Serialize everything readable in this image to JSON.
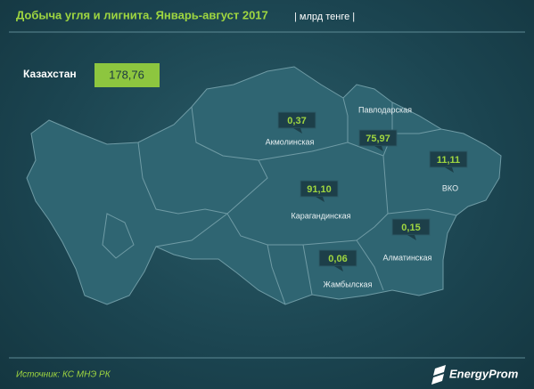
{
  "header": {
    "title": "Добыча угля и лигнита. Январь-август 2017",
    "unit": "| млрд тенге |"
  },
  "total": {
    "label": "Казахстан",
    "value": "178,76"
  },
  "regions": [
    {
      "name": "Акмолинская",
      "value": "0,37"
    },
    {
      "name": "Павлодарская",
      "value": "75,97"
    },
    {
      "name": "ВКО",
      "value": "11,11"
    },
    {
      "name": "Карагандинская",
      "value": "91,10"
    },
    {
      "name": "Алматинская",
      "value": "0,15"
    },
    {
      "name": "Жамбылская",
      "value": "0,06"
    }
  ],
  "footer": {
    "source": "Источник: КС МНЭ РК",
    "logo": "EnergyProm"
  }
}
